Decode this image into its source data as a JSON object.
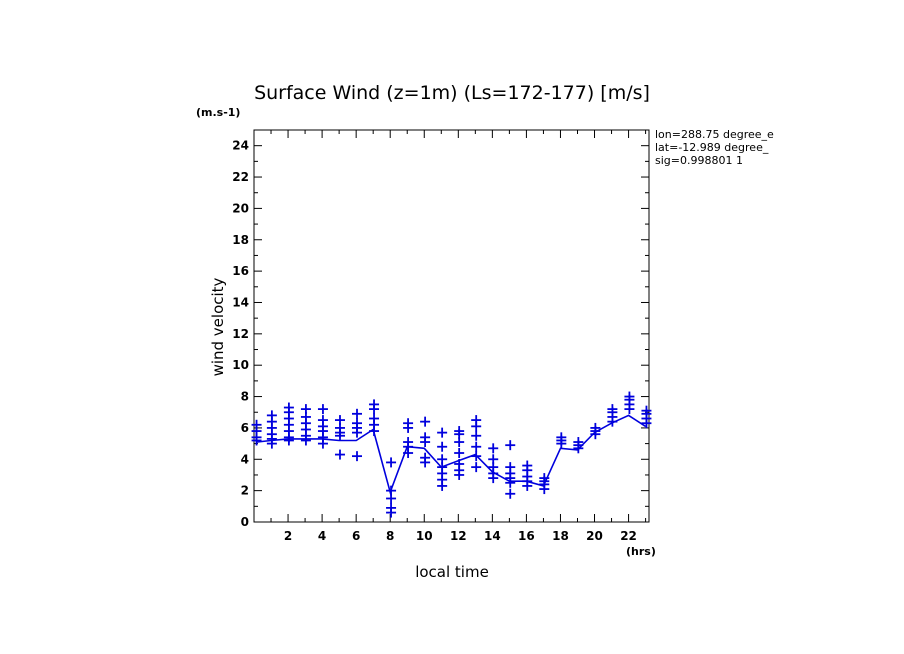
{
  "chart_data": {
    "type": "line",
    "title": "Surface Wind (z=1m) (Ls=172-177) [m/s]",
    "y_unit": "(m.s-1)",
    "x_unit": "(hrs)",
    "xlabel": "local time",
    "ylabel": "wind velocity",
    "xlim": [
      0,
      23.2
    ],
    "ylim": [
      0,
      25
    ],
    "x_ticks": [
      "2",
      "4",
      "6",
      "8",
      "10",
      "12",
      "14",
      "16",
      "18",
      "20",
      "22"
    ],
    "y_ticks": [
      "0",
      "2",
      "4",
      "6",
      "8",
      "10",
      "12",
      "14",
      "16",
      "18",
      "20",
      "22",
      "24"
    ],
    "grid": false,
    "info_lines": [
      "lon=288.75 degree_e",
      "lat=-12.989 degree_",
      "sig=0.998801 1"
    ],
    "colors": {
      "series": "#0000dd",
      "axes": "#000000"
    },
    "series": [
      {
        "kind": "line",
        "x": [
          0.2,
          1.0,
          2.0,
          3.0,
          4.0,
          5.0,
          6.0,
          7.0,
          8.0,
          9.0,
          10.0,
          11.0,
          12.0,
          13.0,
          14.0,
          15.0,
          16.0,
          17.0,
          18.0,
          19.0,
          20.0,
          21.0,
          22.0,
          23.0
        ],
        "y": [
          5.1,
          5.2,
          5.3,
          5.3,
          5.3,
          5.2,
          5.2,
          5.9,
          1.9,
          4.8,
          4.7,
          3.5,
          3.9,
          4.3,
          3.2,
          2.6,
          2.6,
          2.3,
          4.7,
          4.6,
          5.7,
          6.3,
          6.8,
          6.1
        ]
      },
      {
        "kind": "scatter",
        "marker": "+",
        "points": [
          [
            0.15,
            5.4
          ],
          [
            0.15,
            5.8
          ],
          [
            0.15,
            6.2
          ],
          [
            0.15,
            5.2
          ],
          [
            1.05,
            5.0
          ],
          [
            1.05,
            5.3
          ],
          [
            1.05,
            5.6
          ],
          [
            1.05,
            6.0
          ],
          [
            1.05,
            6.4
          ],
          [
            1.05,
            6.8
          ],
          [
            2.05,
            5.2
          ],
          [
            2.05,
            5.4
          ],
          [
            2.05,
            5.8
          ],
          [
            2.05,
            6.2
          ],
          [
            2.05,
            6.6
          ],
          [
            2.05,
            7.0
          ],
          [
            2.05,
            7.3
          ],
          [
            3.05,
            5.2
          ],
          [
            3.05,
            5.5
          ],
          [
            3.05,
            5.9
          ],
          [
            3.05,
            6.3
          ],
          [
            3.05,
            6.7
          ],
          [
            3.05,
            7.2
          ],
          [
            4.05,
            5.0
          ],
          [
            4.05,
            5.4
          ],
          [
            4.05,
            5.8
          ],
          [
            4.05,
            6.1
          ],
          [
            4.05,
            6.5
          ],
          [
            4.05,
            7.2
          ],
          [
            5.05,
            4.3
          ],
          [
            5.05,
            5.5
          ],
          [
            5.05,
            5.7
          ],
          [
            5.05,
            6.0
          ],
          [
            5.05,
            6.5
          ],
          [
            6.05,
            4.2
          ],
          [
            6.05,
            5.7
          ],
          [
            6.05,
            6.0
          ],
          [
            6.05,
            6.3
          ],
          [
            6.05,
            6.9
          ],
          [
            7.05,
            5.8
          ],
          [
            7.05,
            6.2
          ],
          [
            7.05,
            6.6
          ],
          [
            7.05,
            7.2
          ],
          [
            7.05,
            7.5
          ],
          [
            8.05,
            0.6
          ],
          [
            8.05,
            0.9
          ],
          [
            8.05,
            1.5
          ],
          [
            8.05,
            2.0
          ],
          [
            8.05,
            3.8
          ],
          [
            9.05,
            4.4
          ],
          [
            9.05,
            4.8
          ],
          [
            9.05,
            5.1
          ],
          [
            9.05,
            6.0
          ],
          [
            9.05,
            6.3
          ],
          [
            10.05,
            3.8
          ],
          [
            10.05,
            4.1
          ],
          [
            10.05,
            5.1
          ],
          [
            10.05,
            5.4
          ],
          [
            10.05,
            6.4
          ],
          [
            11.05,
            2.3
          ],
          [
            11.05,
            2.7
          ],
          [
            11.05,
            3.1
          ],
          [
            11.05,
            3.5
          ],
          [
            11.05,
            4.0
          ],
          [
            11.05,
            4.8
          ],
          [
            11.05,
            5.7
          ],
          [
            12.05,
            3.0
          ],
          [
            12.05,
            3.3
          ],
          [
            12.05,
            3.7
          ],
          [
            12.05,
            4.4
          ],
          [
            12.05,
            5.1
          ],
          [
            12.05,
            5.6
          ],
          [
            12.05,
            5.8
          ],
          [
            13.05,
            3.5
          ],
          [
            13.05,
            4.2
          ],
          [
            13.05,
            4.8
          ],
          [
            13.05,
            5.5
          ],
          [
            13.05,
            6.1
          ],
          [
            13.05,
            6.5
          ],
          [
            14.05,
            2.8
          ],
          [
            14.05,
            3.1
          ],
          [
            14.05,
            3.5
          ],
          [
            14.05,
            4.0
          ],
          [
            14.05,
            4.7
          ],
          [
            15.05,
            1.8
          ],
          [
            15.05,
            2.5
          ],
          [
            15.05,
            2.8
          ],
          [
            15.05,
            3.1
          ],
          [
            15.05,
            3.5
          ],
          [
            15.05,
            4.9
          ],
          [
            16.05,
            2.3
          ],
          [
            16.05,
            2.6
          ],
          [
            16.05,
            2.9
          ],
          [
            16.05,
            3.3
          ],
          [
            16.05,
            3.6
          ],
          [
            17.05,
            2.1
          ],
          [
            17.05,
            2.4
          ],
          [
            17.05,
            2.6
          ],
          [
            17.05,
            2.8
          ],
          [
            18.05,
            5.0
          ],
          [
            18.05,
            5.2
          ],
          [
            18.05,
            5.4
          ],
          [
            19.05,
            4.7
          ],
          [
            19.05,
            4.9
          ],
          [
            19.05,
            5.1
          ],
          [
            20.05,
            5.6
          ],
          [
            20.05,
            5.8
          ],
          [
            20.05,
            6.0
          ],
          [
            21.05,
            6.4
          ],
          [
            21.05,
            6.7
          ],
          [
            21.05,
            7.0
          ],
          [
            21.05,
            7.2
          ],
          [
            22.05,
            7.2
          ],
          [
            22.05,
            7.5
          ],
          [
            22.05,
            7.8
          ],
          [
            22.05,
            8.0
          ],
          [
            23.05,
            6.3
          ],
          [
            23.05,
            6.6
          ],
          [
            23.05,
            6.9
          ],
          [
            23.05,
            7.1
          ]
        ]
      }
    ]
  }
}
